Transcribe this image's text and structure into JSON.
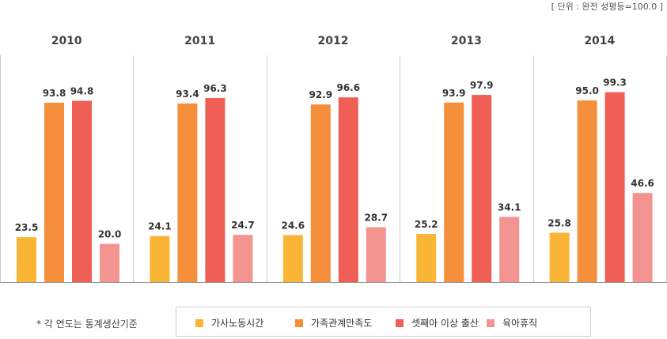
{
  "unit_note": "[ 단위 : 완전 성평등=100.0 ]",
  "footnote": "* 각 연도는 통계생산기준",
  "colors": {
    "series": [
      "#fbb536",
      "#f68f3c",
      "#f05f55",
      "#f49491"
    ],
    "axis": "#999999",
    "divider": "#cccccc"
  },
  "chart_data": {
    "type": "bar",
    "categories": [
      "2010",
      "2011",
      "2012",
      "2013",
      "2014"
    ],
    "series": [
      {
        "name": "가사노동시간",
        "values": [
          23.5,
          24.1,
          24.6,
          25.2,
          25.8
        ]
      },
      {
        "name": "가족관계만족도",
        "values": [
          93.8,
          93.4,
          92.9,
          93.9,
          95.0
        ]
      },
      {
        "name": "셋째아 이상 출산",
        "values": [
          94.8,
          96.3,
          96.6,
          97.9,
          99.3
        ]
      },
      {
        "name": "육아휴직",
        "values": [
          20.0,
          24.7,
          28.7,
          34.1,
          46.6
        ]
      }
    ],
    "value_labels": [
      [
        "23.5",
        "24.1",
        "24.6",
        "25.2",
        "25.8"
      ],
      [
        "93.8",
        "93.4",
        "92.9",
        "93.9",
        "95.0"
      ],
      [
        "94.8",
        "96.3",
        "96.6",
        "97.9",
        "99.3"
      ],
      [
        "20.0",
        "24.7",
        "28.7",
        "34.1",
        "46.6"
      ]
    ],
    "ylim": [
      0,
      100
    ],
    "grid": false,
    "legend_position": "bottom",
    "title": "",
    "xlabel": "",
    "ylabel": ""
  }
}
